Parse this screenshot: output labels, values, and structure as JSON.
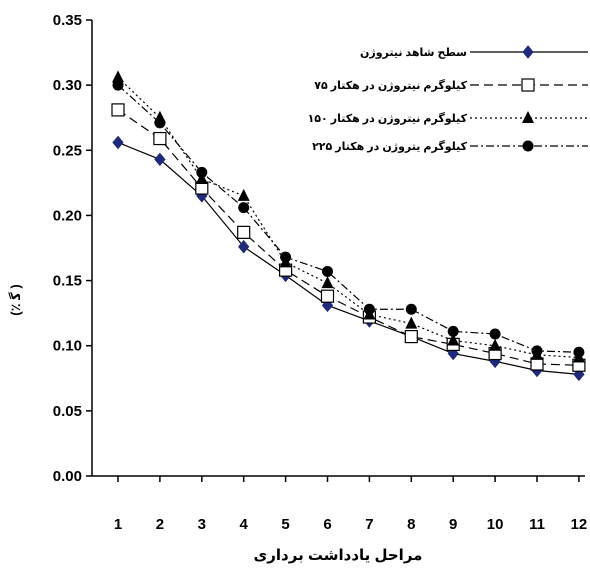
{
  "chart_data": {
    "type": "line",
    "x": [
      1,
      2,
      3,
      4,
      5,
      6,
      7,
      8,
      9,
      10,
      11,
      12
    ],
    "x_tick_labels": [
      "1",
      "2",
      "3",
      "4",
      "5",
      "6",
      "7",
      "8",
      "9",
      "10",
      "11",
      "12"
    ],
    "ylim": [
      0,
      0.35
    ],
    "y_ticks": [
      0.0,
      0.05,
      0.1,
      0.15,
      0.2,
      0.25,
      0.3,
      0.35
    ],
    "y_tick_labels": [
      "0.00",
      "0.05",
      "0.10",
      "0.15",
      "0.20",
      "0.25",
      "0.30",
      "0.35"
    ],
    "xlabel": "مراحل يادداشت برداری",
    "ylabel": "(٪   ﮔ )",
    "grid": false,
    "legend_position": "top-right",
    "series": [
      {
        "name": "سطح شاهد نيتروژن",
        "marker": "diamond",
        "line": "solid",
        "color": "#1f2a7a",
        "values": [
          0.256,
          0.243,
          0.215,
          0.176,
          0.154,
          0.131,
          0.119,
          0.107,
          0.094,
          0.088,
          0.081,
          0.078
        ]
      },
      {
        "name": "کيلوگرم نيتروژن در هکتار ۷۵",
        "marker": "square",
        "line": "dash",
        "color": "#000000",
        "values": [
          0.281,
          0.259,
          0.221,
          0.187,
          0.158,
          0.138,
          0.122,
          0.107,
          0.101,
          0.094,
          0.086,
          0.085
        ]
      },
      {
        "name": "کيلوگرم نيتروژن در هکتار ۱۵۰",
        "marker": "triangle",
        "line": "dot",
        "color": "#000000",
        "values": [
          0.306,
          0.275,
          0.228,
          0.215,
          0.164,
          0.148,
          0.124,
          0.117,
          0.104,
          0.1,
          0.093,
          0.091
        ]
      },
      {
        "name": "کيلوگرم يتروژن در هکتار ۲۲۵",
        "marker": "circle",
        "line": "dashdot",
        "color": "#000000",
        "values": [
          0.3,
          0.271,
          0.233,
          0.206,
          0.168,
          0.157,
          0.128,
          0.128,
          0.111,
          0.109,
          0.096,
          0.095
        ]
      }
    ]
  }
}
